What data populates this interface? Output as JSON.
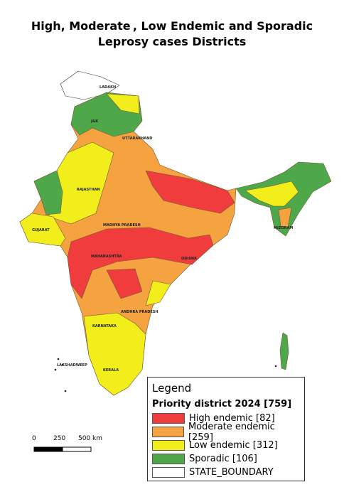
{
  "header": {
    "title_line1": "High, Moderate , Low Endemic and Sporadic",
    "title_line2": "Leprosy cases Districts"
  },
  "map_labels": [
    "LADAKH",
    "J&K",
    "UTTARAKHAND",
    "RAJASTHAN",
    "GUJARAT",
    "MADHYA PRADESH",
    "MAHARASHTRA",
    "ODISHA",
    "ANDHRA PRADESH",
    "KARNATAKA",
    "KERALA",
    "LAKSHADWEEP",
    "MIZORAM"
  ],
  "legend": {
    "title": "Legend",
    "subtitle": "Priority district 2024 [759]",
    "entries": [
      {
        "label": "High endemic [82]",
        "color": "#f03c3c"
      },
      {
        "label": "Moderate endemic [259]",
        "color": "#f5a340"
      },
      {
        "label": "Low endemic [312]",
        "color": "#f2ee1c"
      },
      {
        "label": "Sporadic [106]",
        "color": "#4ea84a"
      },
      {
        "label": "STATE_BOUNDARY",
        "color": "#ffffff"
      }
    ]
  },
  "scale_bar": {
    "labels": [
      "0",
      "250",
      "500 km"
    ]
  }
}
